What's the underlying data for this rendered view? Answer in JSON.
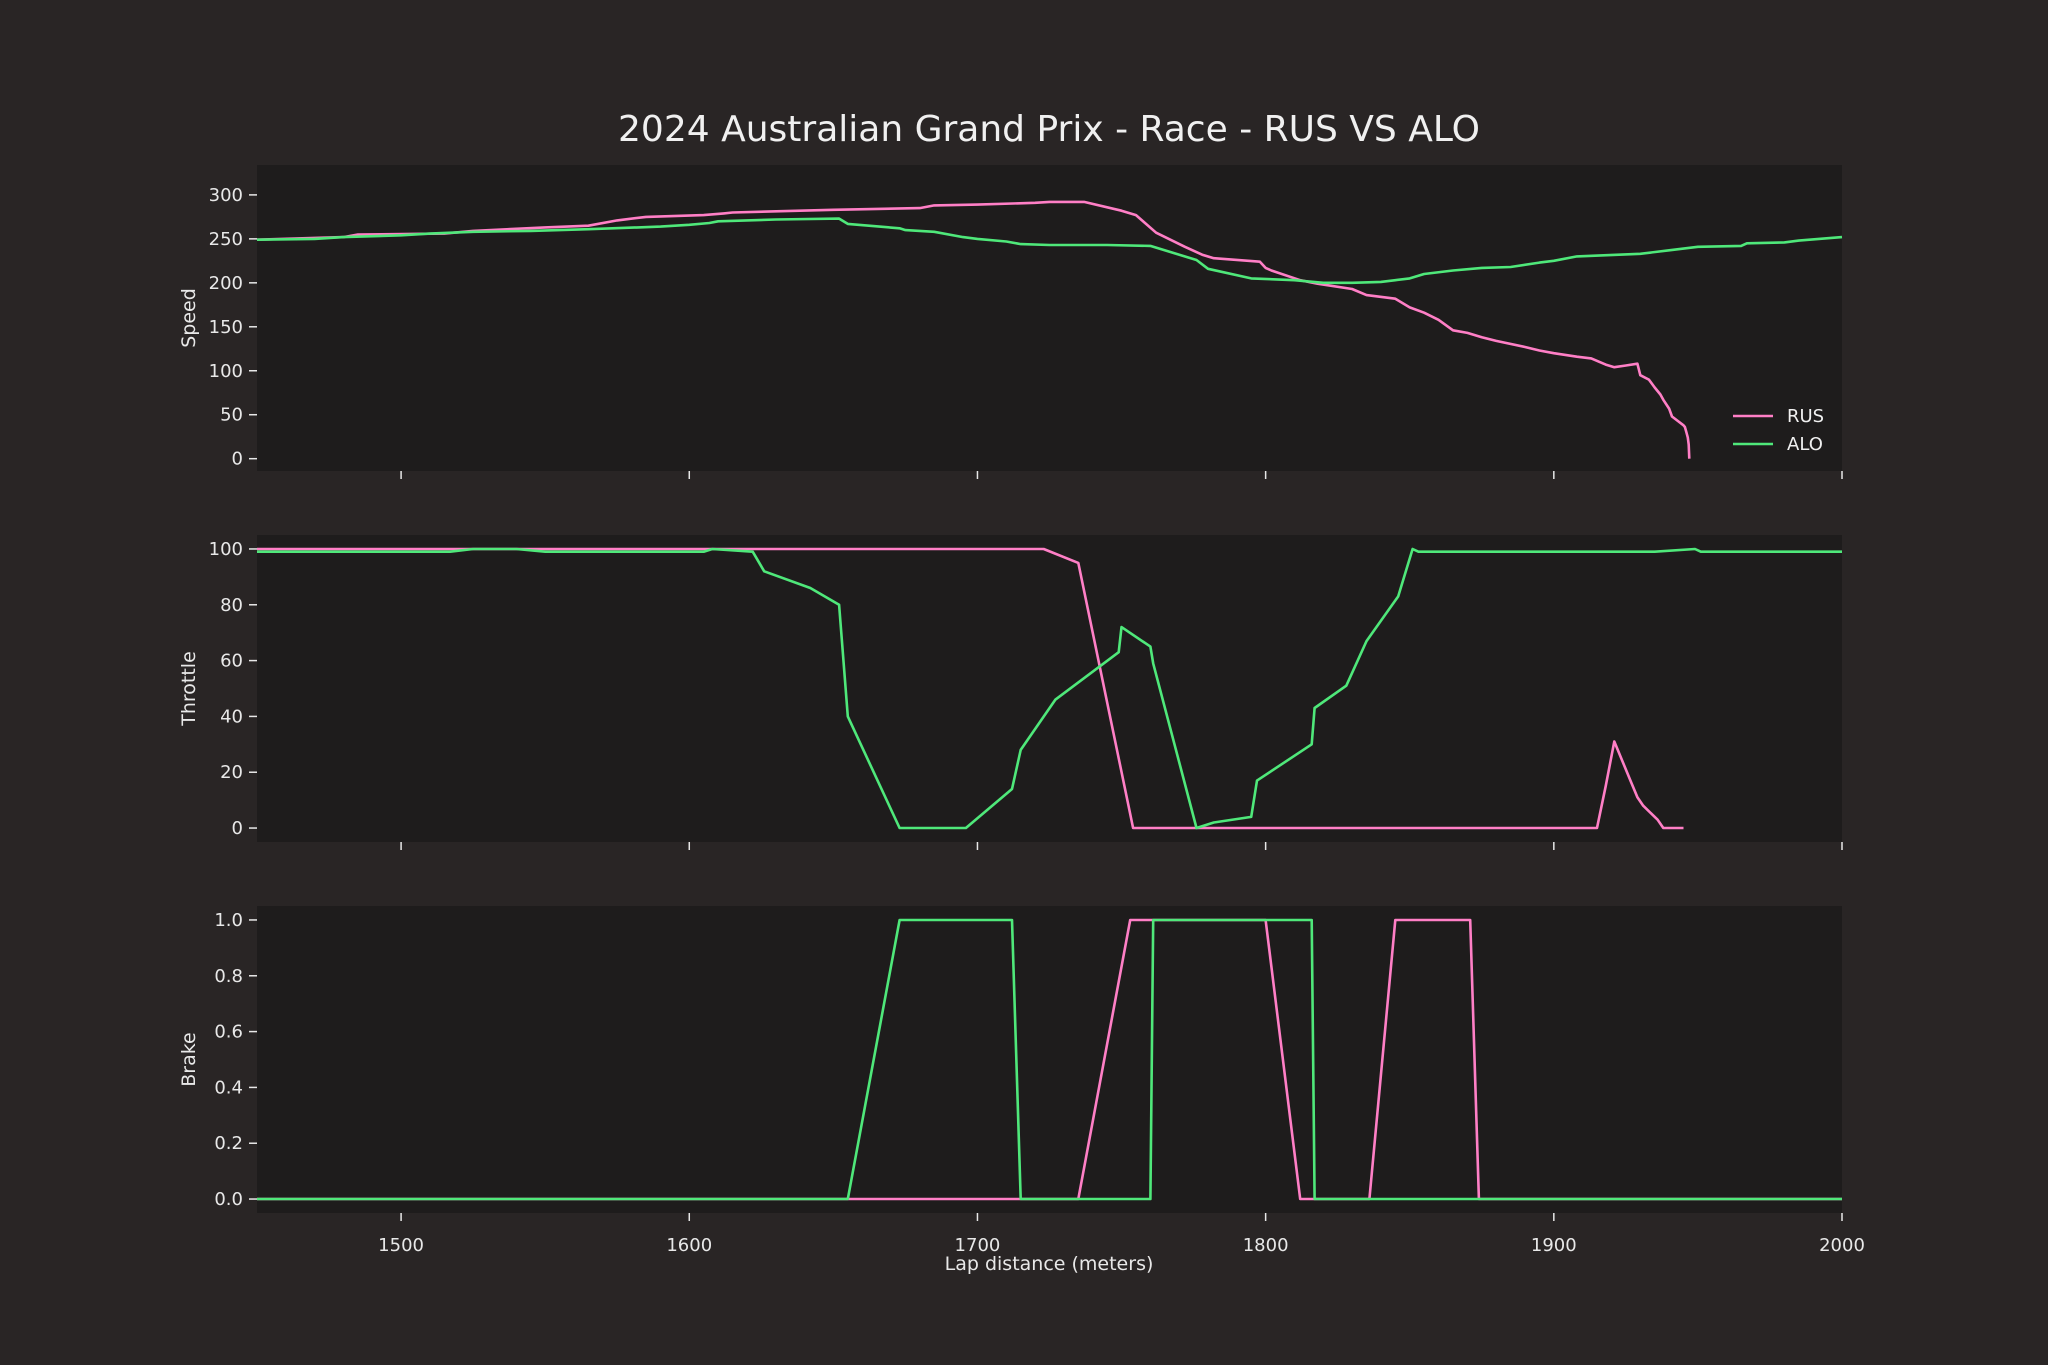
{
  "chart_data": {
    "type": "line",
    "title": "2024 Australian Grand Prix - Race - RUS VS ALO",
    "xlabel": "Lap distance (meters)",
    "xlim": [
      1450,
      2000
    ],
    "xticks": [
      "1500",
      "1600",
      "1700",
      "1800",
      "1900",
      "2000"
    ],
    "grid": false,
    "legend_position": "lower-right (top panel)",
    "series_colors": {
      "RUS": "#ff7fc6",
      "ALO": "#4fe87a"
    },
    "panels": [
      {
        "name": "speed",
        "ylabel": "Speed",
        "ylim": [
          -14,
          334
        ],
        "yticks": [
          "0",
          "50",
          "100",
          "150",
          "200",
          "250",
          "300"
        ],
        "legend": [
          "RUS",
          "ALO"
        ],
        "series": [
          {
            "name": "RUS",
            "color": "#ff7fc6",
            "points": [
              [
                1450,
                249
              ],
              [
                1480,
                252
              ],
              [
                1485,
                255
              ],
              [
                1515,
                256
              ],
              [
                1525,
                259
              ],
              [
                1550,
                263
              ],
              [
                1565,
                265
              ],
              [
                1575,
                271
              ],
              [
                1585,
                275
              ],
              [
                1605,
                277
              ],
              [
                1612,
                279
              ],
              [
                1615,
                280
              ],
              [
                1650,
                283
              ],
              [
                1680,
                285
              ],
              [
                1685,
                288
              ],
              [
                1700,
                289
              ],
              [
                1720,
                291
              ],
              [
                1725,
                292
              ],
              [
                1737,
                292
              ],
              [
                1750,
                282
              ],
              [
                1755,
                277
              ],
              [
                1762,
                257
              ],
              [
                1772,
                241
              ],
              [
                1778,
                232
              ],
              [
                1782,
                228
              ],
              [
                1798,
                224
              ],
              [
                1800,
                217
              ],
              [
                1802,
                214
              ],
              [
                1812,
                203
              ],
              [
                1818,
                199
              ],
              [
                1830,
                193
              ],
              [
                1835,
                186
              ],
              [
                1845,
                182
              ],
              [
                1850,
                172
              ],
              [
                1855,
                166
              ],
              [
                1860,
                158
              ],
              [
                1865,
                146
              ],
              [
                1870,
                143
              ],
              [
                1875,
                138
              ],
              [
                1880,
                134
              ],
              [
                1890,
                127
              ],
              [
                1895,
                123
              ],
              [
                1900,
                120
              ],
              [
                1908,
                116
              ],
              [
                1913,
                114
              ],
              [
                1918,
                107
              ],
              [
                1921,
                104
              ],
              [
                1925,
                106
              ],
              [
                1929,
                108
              ],
              [
                1930,
                95
              ],
              [
                1933,
                90
              ],
              [
                1935,
                81
              ],
              [
                1937,
                73
              ],
              [
                1938,
                67
              ],
              [
                1940,
                57
              ],
              [
                1941,
                48
              ],
              [
                1943,
                43
              ],
              [
                1945,
                38
              ],
              [
                1945.5,
                36
              ],
              [
                1946,
                30
              ],
              [
                1946.5,
                24
              ],
              [
                1946.8,
                16
              ],
              [
                1947,
                0
              ]
            ]
          },
          {
            "name": "ALO",
            "color": "#4fe87a",
            "points": [
              [
                1450,
                249
              ],
              [
                1470,
                250
              ],
              [
                1480,
                252
              ],
              [
                1500,
                254
              ],
              [
                1510,
                256
              ],
              [
                1525,
                258
              ],
              [
                1545,
                259
              ],
              [
                1565,
                261
              ],
              [
                1590,
                264
              ],
              [
                1600,
                266
              ],
              [
                1607,
                268
              ],
              [
                1610,
                270
              ],
              [
                1630,
                272
              ],
              [
                1652,
                273
              ],
              [
                1655,
                267
              ],
              [
                1673,
                262
              ],
              [
                1675,
                260
              ],
              [
                1685,
                258
              ],
              [
                1695,
                252
              ],
              [
                1700,
                250
              ],
              [
                1710,
                247
              ],
              [
                1715,
                244
              ],
              [
                1725,
                243
              ],
              [
                1745,
                243
              ],
              [
                1760,
                242
              ],
              [
                1776,
                226
              ],
              [
                1780,
                216
              ],
              [
                1795,
                205
              ],
              [
                1810,
                203
              ],
              [
                1820,
                200
              ],
              [
                1830,
                200
              ],
              [
                1840,
                201
              ],
              [
                1845,
                203
              ],
              [
                1850,
                205
              ],
              [
                1855,
                210
              ],
              [
                1865,
                214
              ],
              [
                1875,
                217
              ],
              [
                1885,
                218
              ],
              [
                1895,
                223
              ],
              [
                1900,
                225
              ],
              [
                1908,
                230
              ],
              [
                1930,
                233
              ],
              [
                1940,
                237
              ],
              [
                1950,
                241
              ],
              [
                1965,
                242
              ],
              [
                1967,
                245
              ],
              [
                1980,
                246
              ],
              [
                1985,
                248
              ],
              [
                2000,
                252
              ]
            ]
          }
        ]
      },
      {
        "name": "throttle",
        "ylabel": "Throttle",
        "ylim": [
          -5,
          105
        ],
        "yticks": [
          "0",
          "20",
          "40",
          "60",
          "80",
          "100"
        ],
        "series": [
          {
            "name": "RUS",
            "color": "#ff7fc6",
            "points": [
              [
                1450,
                100
              ],
              [
                1723,
                100
              ],
              [
                1735,
                95
              ],
              [
                1754,
                0
              ],
              [
                1915,
                0
              ],
              [
                1918,
                15
              ],
              [
                1921,
                31
              ],
              [
                1927,
                16
              ],
              [
                1929,
                11
              ],
              [
                1931,
                8
              ],
              [
                1934,
                5
              ],
              [
                1936,
                3
              ],
              [
                1938,
                0
              ],
              [
                1945,
                0
              ]
            ]
          },
          {
            "name": "ALO",
            "color": "#4fe87a",
            "points": [
              [
                1450,
                99
              ],
              [
                1517,
                99
              ],
              [
                1525,
                100
              ],
              [
                1540,
                100
              ],
              [
                1550,
                99
              ],
              [
                1605,
                99
              ],
              [
                1608,
                100
              ],
              [
                1622,
                99
              ],
              [
                1626,
                92
              ],
              [
                1642,
                86
              ],
              [
                1652,
                80
              ],
              [
                1655,
                40
              ],
              [
                1673,
                0
              ],
              [
                1696,
                0
              ],
              [
                1712,
                14
              ],
              [
                1715,
                28
              ],
              [
                1727,
                46
              ],
              [
                1749,
                63
              ],
              [
                1750,
                72
              ],
              [
                1760,
                65
              ],
              [
                1761,
                59
              ],
              [
                1776,
                0
              ],
              [
                1782,
                2
              ],
              [
                1795,
                4
              ],
              [
                1797,
                17
              ],
              [
                1816,
                30
              ],
              [
                1817,
                43
              ],
              [
                1828,
                51
              ],
              [
                1835,
                67
              ],
              [
                1846,
                83
              ],
              [
                1851,
                100
              ],
              [
                1853,
                99
              ],
              [
                1935,
                99
              ],
              [
                1949,
                100
              ],
              [
                1951,
                99
              ],
              [
                2000,
                99
              ]
            ]
          }
        ]
      },
      {
        "name": "brake",
        "ylabel": "Brake",
        "ylim": [
          -0.05,
          1.05
        ],
        "yticks": [
          "0.0",
          "0.2",
          "0.4",
          "0.6",
          "0.8",
          "1.0"
        ],
        "series": [
          {
            "name": "RUS",
            "color": "#ff7fc6",
            "points": [
              [
                1450,
                0
              ],
              [
                1735,
                0
              ],
              [
                1753,
                1
              ],
              [
                1800,
                1
              ],
              [
                1812,
                0
              ],
              [
                1836,
                0
              ],
              [
                1845,
                1
              ],
              [
                1871,
                1
              ],
              [
                1874,
                0
              ],
              [
                2000,
                0
              ]
            ]
          },
          {
            "name": "ALO",
            "color": "#4fe87a",
            "points": [
              [
                1450,
                0
              ],
              [
                1655,
                0
              ],
              [
                1673,
                1
              ],
              [
                1712,
                1
              ],
              [
                1715,
                0
              ],
              [
                1760,
                0
              ],
              [
                1761,
                1
              ],
              [
                1816,
                1
              ],
              [
                1817,
                0
              ],
              [
                2000,
                0
              ]
            ]
          }
        ]
      }
    ]
  }
}
